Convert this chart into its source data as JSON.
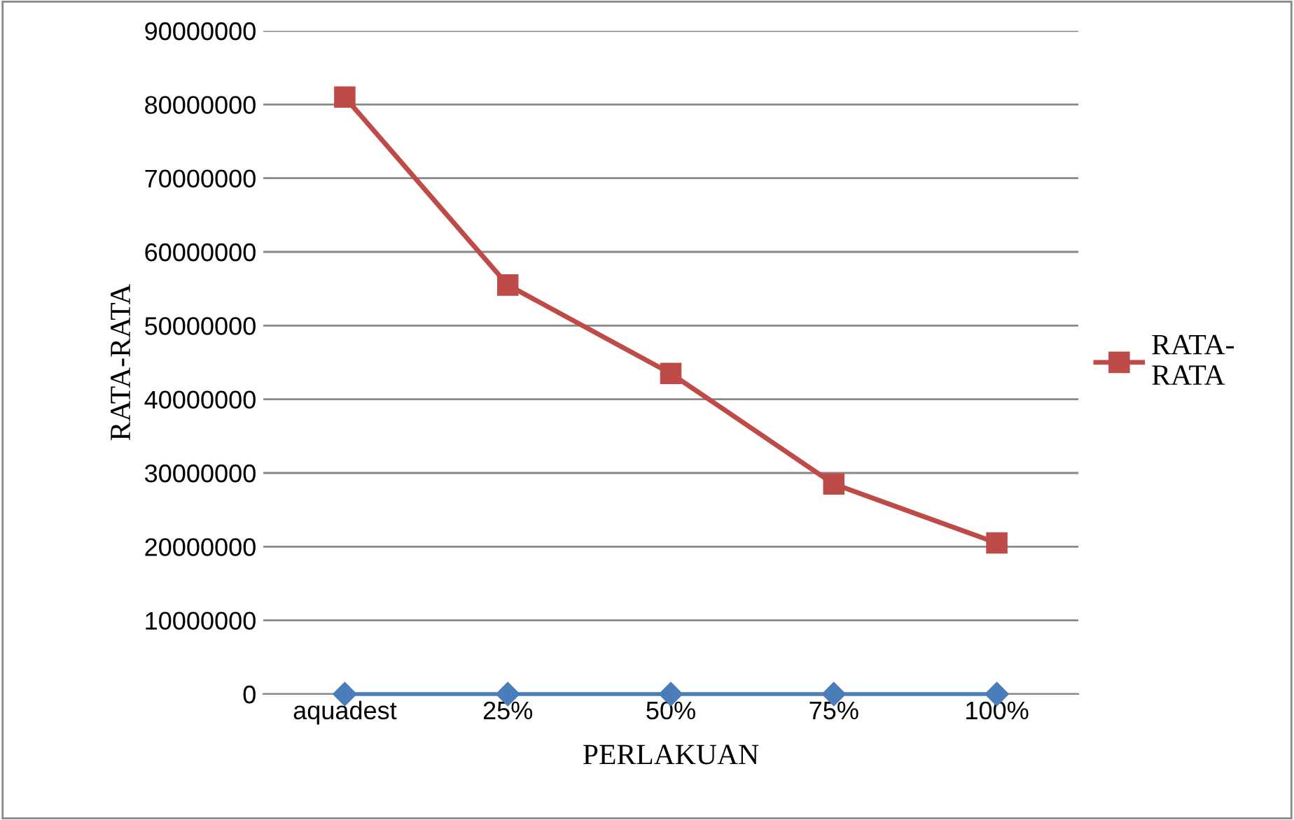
{
  "chart_data": {
    "type": "line",
    "xlabel": "PERLAKUAN",
    "ylabel": "RATA-RATA",
    "categories": [
      "aquadest",
      "25%",
      "50%",
      "75%",
      "100%"
    ],
    "series": [
      {
        "color": "#4a7ebb",
        "marker": "diamond",
        "values": [
          0,
          0,
          0,
          0,
          0
        ]
      },
      {
        "name": "RATA-\nRATA",
        "color": "#be4b48",
        "marker": "square",
        "values": [
          81000000,
          55500000,
          43500000,
          28500000,
          20500000
        ]
      }
    ],
    "ylim": [
      0,
      90000000
    ],
    "yticks": [
      0,
      10000000,
      20000000,
      30000000,
      40000000,
      50000000,
      60000000,
      70000000,
      80000000,
      90000000
    ],
    "grid": "y",
    "legend": "right",
    "line_style": "solid"
  }
}
